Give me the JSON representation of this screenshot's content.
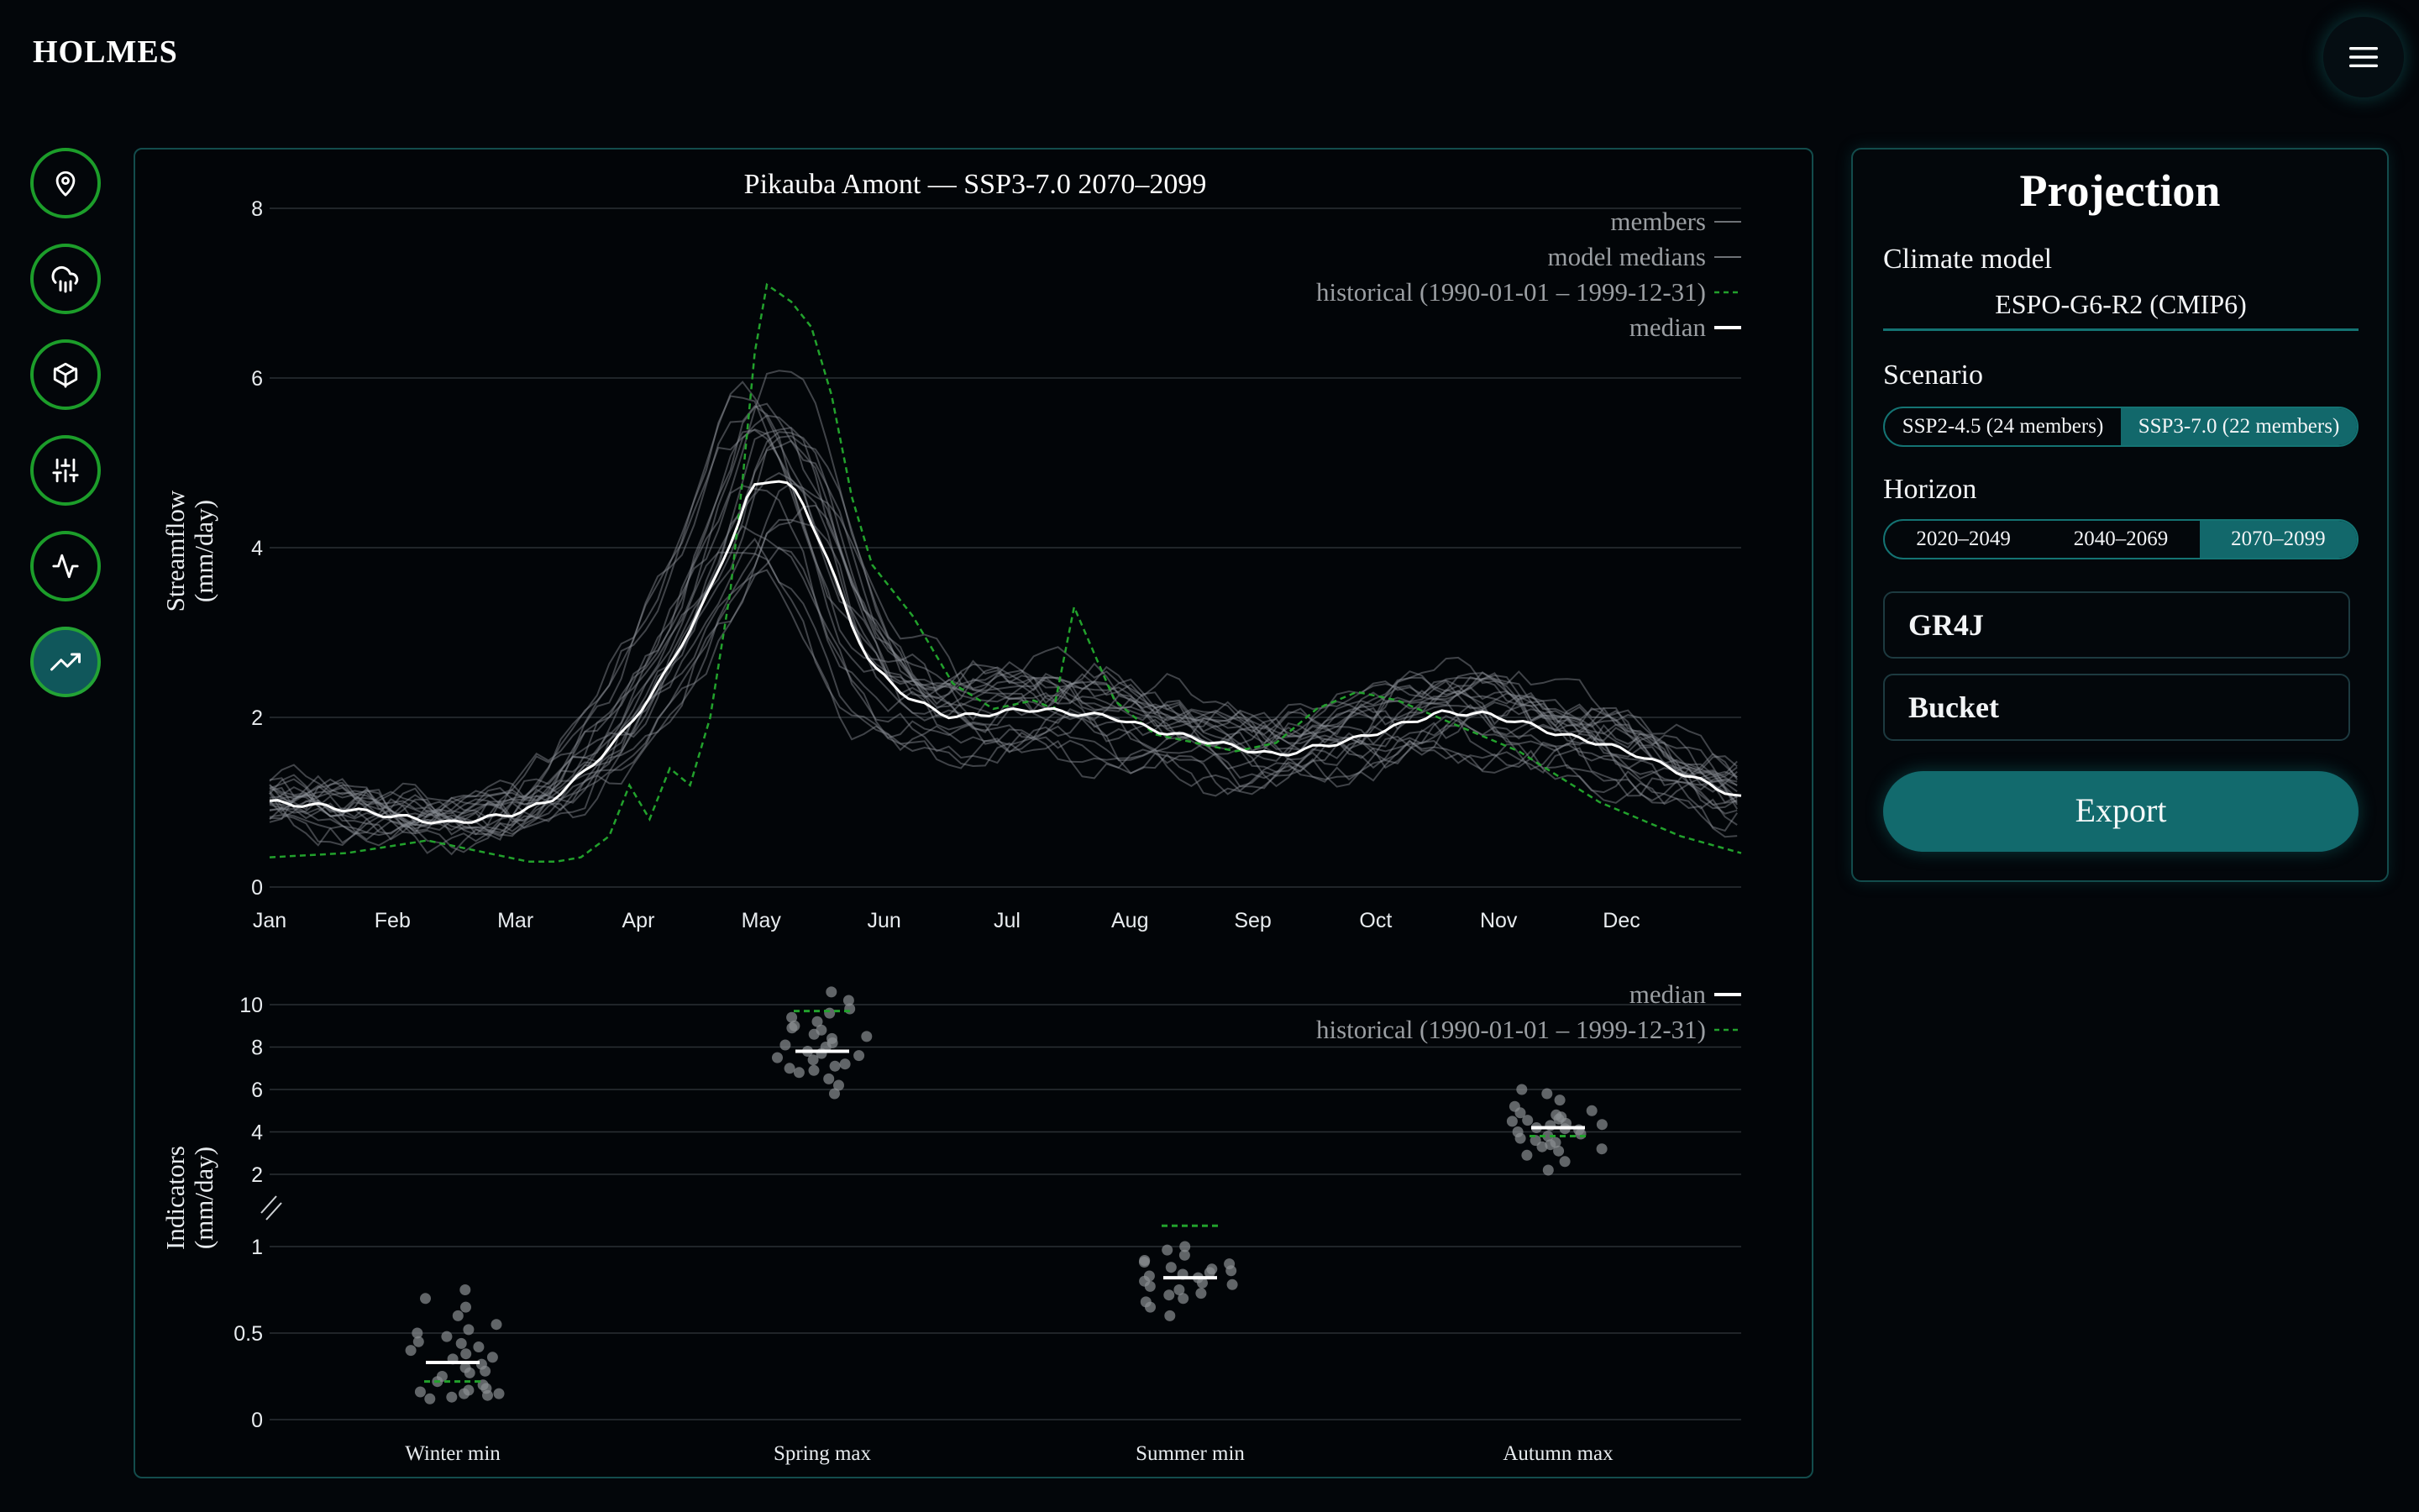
{
  "app": {
    "title": "HOLMES"
  },
  "header": {
    "menu_icon": "hamburger-menu-icon"
  },
  "nav": {
    "items": [
      {
        "icon": "map-pin-icon",
        "active": false
      },
      {
        "icon": "cloud-rain-icon",
        "active": false
      },
      {
        "icon": "cube-icon",
        "active": false
      },
      {
        "icon": "sliders-icon",
        "active": false
      },
      {
        "icon": "activity-pulse-icon",
        "active": false
      },
      {
        "icon": "trending-up-icon",
        "active": true
      }
    ]
  },
  "chart_data": [
    {
      "type": "line",
      "title": "Pikauba Amont — SSP3-7.0 2070–2099",
      "xlabel": "",
      "ylabel": "Streamflow (mm/day)",
      "ylabel_lines": [
        "Streamflow",
        "(mm/day)"
      ],
      "ylim": [
        0,
        8
      ],
      "yticks": [
        "0",
        "2",
        "4",
        "6",
        "8"
      ],
      "xticks": [
        "Jan",
        "Feb",
        "Mar",
        "Apr",
        "May",
        "Jun",
        "Jul",
        "Aug",
        "Sep",
        "Oct",
        "Nov",
        "Dec"
      ],
      "grid": true,
      "legend_position": "top-right",
      "legend": [
        "members",
        "model medians",
        "historical (1990-01-01 – 1999-12-31)",
        "median"
      ],
      "x_unit": "day of year",
      "members_count": 22,
      "colors": {
        "members": "#9a9ea2",
        "median": "#ffffff",
        "historical": "#22a12c"
      },
      "median": {
        "x": [
          1,
          15,
          30,
          45,
          60,
          70,
          80,
          90,
          100,
          110,
          117,
          120,
          125,
          128,
          132,
          138,
          145,
          150,
          160,
          170,
          180,
          190,
          200,
          210,
          220,
          230,
          240,
          250,
          260,
          270,
          280,
          290,
          300,
          310,
          320,
          330,
          340,
          350,
          365
        ],
        "y": [
          1.0,
          0.95,
          0.85,
          0.75,
          0.85,
          1.0,
          1.4,
          1.9,
          2.6,
          3.5,
          4.3,
          4.7,
          4.8,
          4.8,
          4.6,
          4.0,
          3.1,
          2.6,
          2.2,
          2.0,
          2.05,
          2.1,
          2.05,
          2.0,
          1.85,
          1.75,
          1.65,
          1.55,
          1.65,
          1.75,
          1.9,
          2.05,
          2.05,
          1.95,
          1.8,
          1.7,
          1.55,
          1.35,
          1.05
        ]
      },
      "historical": {
        "x": [
          1,
          20,
          40,
          55,
          65,
          72,
          78,
          85,
          90,
          95,
          100,
          105,
          110,
          115,
          118,
          121,
          124,
          127,
          130,
          135,
          140,
          145,
          150,
          160,
          170,
          180,
          190,
          195,
          200,
          210,
          220,
          230,
          240,
          250,
          260,
          270,
          280,
          290,
          300,
          310,
          320,
          330,
          340,
          350,
          365
        ],
        "y": [
          0.35,
          0.4,
          0.55,
          0.4,
          0.3,
          0.3,
          0.35,
          0.6,
          1.2,
          0.8,
          1.4,
          1.2,
          2.0,
          3.5,
          4.8,
          6.3,
          7.1,
          7.0,
          6.9,
          6.6,
          5.8,
          4.6,
          3.8,
          3.2,
          2.4,
          2.1,
          2.2,
          2.1,
          3.3,
          2.2,
          1.8,
          1.7,
          1.6,
          1.7,
          2.1,
          2.3,
          2.2,
          2.0,
          1.8,
          1.6,
          1.3,
          1.0,
          0.8,
          0.6,
          0.4
        ]
      }
    },
    {
      "type": "scatter",
      "title": "",
      "xlabel": "",
      "ylabel": "Indicators (mm/day)",
      "ylabel_lines": [
        "Indicators",
        "(mm/day)"
      ],
      "categories": [
        "Winter min",
        "Spring max",
        "Summer min",
        "Autumn max"
      ],
      "yticks_upper": [
        "2",
        "4",
        "6",
        "8",
        "10"
      ],
      "yticks_lower": [
        "0",
        "0.5",
        "1"
      ],
      "axis_break": true,
      "ylim_upper": [
        2,
        10
      ],
      "ylim_lower": [
        0,
        1
      ],
      "grid": true,
      "legend_position": "top-right",
      "legend": [
        "median",
        "historical (1990-01-01 – 1999-12-31)"
      ],
      "medians": [
        0.33,
        7.8,
        0.82,
        4.2
      ],
      "historical": [
        0.22,
        9.7,
        1.12,
        3.8
      ],
      "members": [
        [
          0.12,
          0.14,
          0.15,
          0.16,
          0.18,
          0.2,
          0.22,
          0.25,
          0.28,
          0.3,
          0.32,
          0.35,
          0.38,
          0.4,
          0.42,
          0.45,
          0.48,
          0.5,
          0.52,
          0.55,
          0.6,
          0.65,
          0.7,
          0.75,
          0.15,
          0.17,
          0.27,
          0.36,
          0.44,
          0.13
        ],
        [
          5.8,
          6.2,
          6.5,
          6.8,
          7.0,
          7.2,
          7.4,
          7.6,
          7.8,
          8.0,
          8.2,
          8.4,
          8.6,
          8.8,
          9.0,
          9.2,
          9.4,
          9.6,
          9.8,
          10.2,
          10.6,
          7.1,
          7.5,
          8.1,
          8.5,
          8.9,
          6.9,
          7.7
        ],
        [
          0.6,
          0.65,
          0.68,
          0.7,
          0.72,
          0.75,
          0.78,
          0.8,
          0.82,
          0.84,
          0.86,
          0.88,
          0.9,
          0.92,
          0.95,
          0.98,
          1.0,
          0.73,
          0.77,
          0.83,
          0.87,
          0.91,
          0.79,
          0.85
        ],
        [
          2.2,
          2.6,
          2.9,
          3.1,
          3.3,
          3.5,
          3.7,
          3.9,
          4.0,
          4.1,
          4.2,
          4.3,
          4.4,
          4.5,
          4.6,
          4.7,
          4.8,
          5.0,
          5.2,
          5.5,
          5.8,
          6.0,
          3.2,
          3.6,
          4.15,
          4.35,
          4.55,
          3.8,
          4.9,
          3.4
        ]
      ]
    }
  ],
  "projection": {
    "title": "Projection",
    "climate_model_label": "Climate model",
    "climate_model_value": "ESPO-G6-R2 (CMIP6)",
    "scenario_label": "Scenario",
    "scenario_options": [
      "SSP2-4.5 (24 members)",
      "SSP3-7.0 (22 members)"
    ],
    "scenario_selected": 1,
    "horizon_label": "Horizon",
    "horizon_options": [
      "2020–2049",
      "2040–2069",
      "2070–2099"
    ],
    "horizon_selected": 2,
    "hydro_model": "GR4J",
    "snow_model": "Bucket",
    "export_label": "Export"
  }
}
